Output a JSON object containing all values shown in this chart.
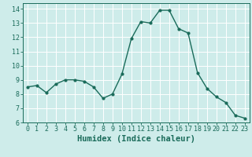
{
  "x": [
    0,
    1,
    2,
    3,
    4,
    5,
    6,
    7,
    8,
    9,
    10,
    11,
    12,
    13,
    14,
    15,
    16,
    17,
    18,
    19,
    20,
    21,
    22,
    23
  ],
  "y": [
    8.5,
    8.6,
    8.1,
    8.7,
    9.0,
    9.0,
    8.9,
    8.5,
    7.7,
    8.0,
    9.4,
    11.9,
    13.1,
    13.0,
    13.9,
    13.9,
    12.6,
    12.3,
    9.5,
    8.4,
    7.8,
    7.4,
    6.5,
    6.3
  ],
  "line_color": "#1a6b5a",
  "marker": "o",
  "marker_size": 2.0,
  "linewidth": 1.0,
  "bg_color": "#ceecea",
  "grid_color": "#ffffff",
  "xlabel": "Humidex (Indice chaleur)",
  "xlim": [
    -0.5,
    23.5
  ],
  "ylim": [
    6,
    14.4
  ],
  "yticks": [
    6,
    7,
    8,
    9,
    10,
    11,
    12,
    13,
    14
  ],
  "xticks": [
    0,
    1,
    2,
    3,
    4,
    5,
    6,
    7,
    8,
    9,
    10,
    11,
    12,
    13,
    14,
    15,
    16,
    17,
    18,
    19,
    20,
    21,
    22,
    23
  ],
  "tick_color": "#1a6b5a",
  "label_color": "#1a6b5a",
  "xlabel_fontsize": 7.5,
  "tick_fontsize": 6.0
}
